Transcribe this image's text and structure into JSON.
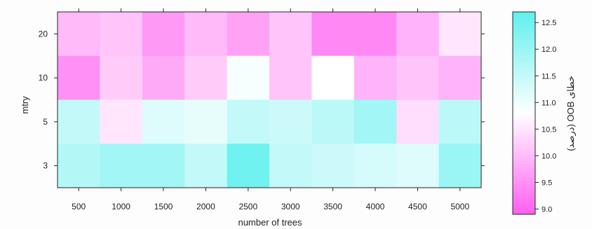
{
  "chart_data": {
    "type": "heatmap",
    "xlabel": "number of trees",
    "ylabel": "mtry",
    "x": [
      500,
      1000,
      1500,
      2000,
      2500,
      3000,
      3500,
      4000,
      4500,
      5000
    ],
    "y": [
      20,
      10,
      5,
      3
    ],
    "values": [
      [
        10.0,
        10.1,
        9.6,
        10.0,
        9.7,
        10.1,
        9.4,
        9.4,
        9.9,
        10.5
      ],
      [
        9.5,
        10.2,
        9.8,
        10.2,
        10.9,
        10.1,
        10.8,
        9.9,
        10.1,
        9.9
      ],
      [
        11.5,
        10.5,
        11.2,
        11.1,
        11.5,
        11.4,
        11.6,
        11.9,
        10.4,
        11.6
      ],
      [
        11.7,
        11.9,
        11.9,
        11.5,
        12.5,
        11.5,
        11.4,
        11.3,
        11.2,
        12.0
      ]
    ],
    "colorbar": {
      "label": "خطای OOB (درصد)",
      "ticks": [
        "9.0",
        "9.5",
        "10.0",
        "10.5",
        "11.0",
        "11.5",
        "12.0",
        "12.5"
      ],
      "range": [
        8.9,
        12.7
      ],
      "low_color": "#ff5ef0",
      "mid_color": "#ffffff",
      "high_color": "#5ef0ee"
    },
    "grid": false
  }
}
